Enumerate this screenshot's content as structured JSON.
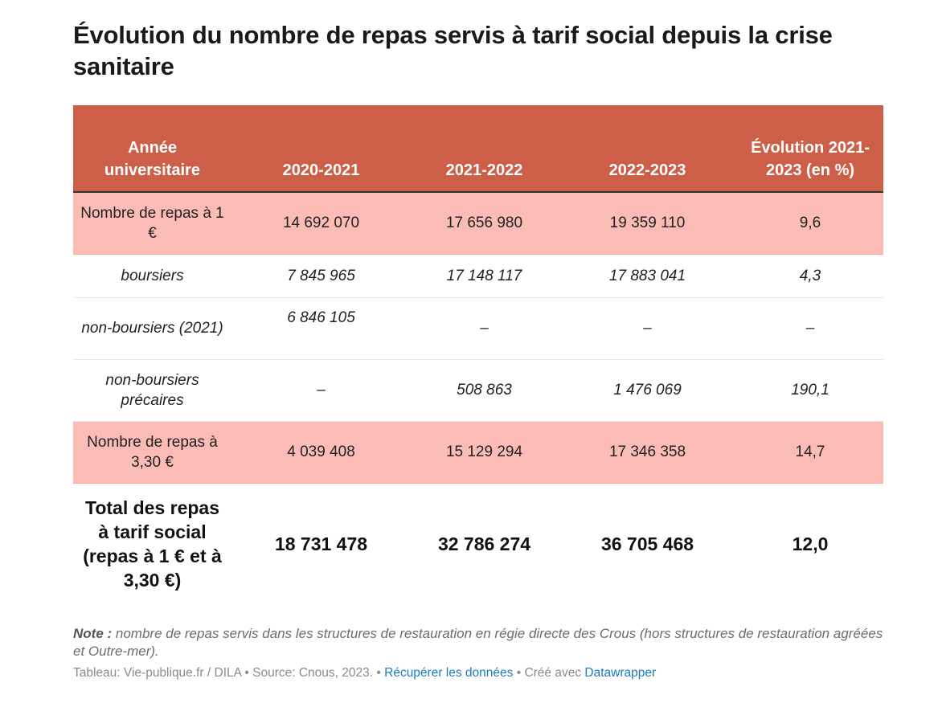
{
  "title": "Évolution du nombre de repas servis à tarif social depuis la crise sanitaire",
  "chart_data": {
    "type": "table",
    "columns": [
      "Année universitaire",
      "2020-2021",
      "2021-2022",
      "2022-2023",
      "Évolution 2021-2023 (en %)"
    ],
    "rows": [
      {
        "label": "Nombre de repas à 1 €",
        "values": [
          "14 692 070",
          "17 656 980",
          "19 359 110",
          "9,6"
        ]
      },
      {
        "label": "boursiers",
        "values": [
          "7 845 965",
          "17 148 117",
          "17 883 041",
          "4,3"
        ]
      },
      {
        "label": "non-boursiers (2021)",
        "values": [
          "6 846 105",
          "–",
          "–",
          "–"
        ]
      },
      {
        "label": "non-boursiers précaires",
        "values": [
          "–",
          "508 863",
          "1 476 069",
          "190,1"
        ]
      },
      {
        "label": "Nombre de repas à 3,30 €",
        "values": [
          "4 039 408",
          "15 129 294",
          "17 346 358",
          "14,7"
        ]
      },
      {
        "label": "Total des repas à tarif social (repas à 1 € et à 3,30 €)",
        "values": [
          "18 731 478",
          "32 786 274",
          "36 705 468",
          "12,0"
        ]
      }
    ]
  },
  "note": {
    "label": "Note :",
    "text": " nombre de repas servis dans les structures de restauration en régie directe des Crous (hors structures de restauration agréées et Outre-mer)."
  },
  "footer": {
    "credit": "Tableau: Vie-publique.fr / DILA • Source: Cnous, 2023.",
    "sep1": " • ",
    "link_data": "Récupérer les données",
    "sep2": " • Créé avec ",
    "link_dw": "Datawrapper"
  },
  "colors": {
    "header_bg": "#cd5f48",
    "highlight_row": "#fbbcb6",
    "link": "#1a7bbf"
  }
}
